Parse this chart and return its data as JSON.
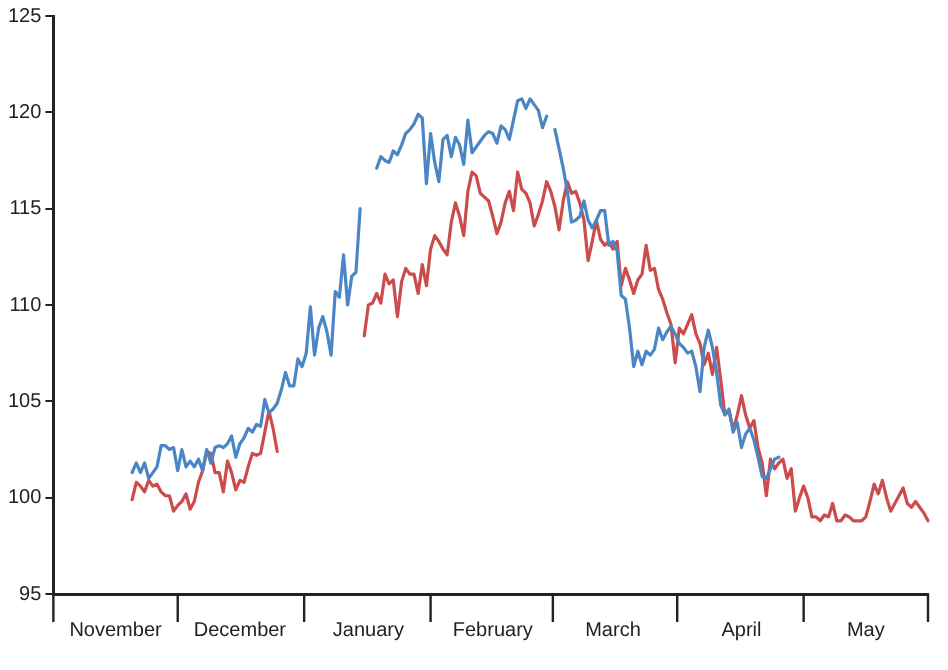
{
  "chart_data": {
    "type": "line",
    "marker": "none",
    "categories": [
      null,
      null,
      null,
      null,
      null,
      null,
      null,
      null,
      null,
      null,
      null,
      null,
      null,
      null,
      null,
      "November",
      null,
      null,
      null,
      null,
      null,
      null,
      null,
      null,
      null,
      null,
      null,
      null,
      null,
      null,
      null,
      null,
      null,
      null,
      null,
      null,
      null,
      null,
      null,
      null,
      null,
      null,
      null,
      null,
      null,
      "December",
      null,
      null,
      null,
      null,
      null,
      null,
      null,
      null,
      null,
      null,
      null,
      null,
      null,
      null,
      null,
      null,
      null,
      null,
      null,
      null,
      null,
      null,
      null,
      null,
      null,
      null,
      null,
      null,
      null,
      null,
      "January",
      null,
      null,
      null,
      null,
      null,
      null,
      null,
      null,
      null,
      null,
      null,
      null,
      null,
      null,
      null,
      null,
      null,
      null,
      null,
      null,
      null,
      null,
      null,
      null,
      null,
      null,
      null,
      null,
      null,
      "February",
      null,
      null,
      null,
      null,
      null,
      null,
      null,
      null,
      null,
      null,
      null,
      null,
      null,
      null,
      null,
      null,
      null,
      null,
      null,
      null,
      null,
      null,
      null,
      null,
      null,
      null,
      null,
      null,
      "March",
      null,
      null,
      null,
      null,
      null,
      null,
      null,
      null,
      null,
      null,
      null,
      null,
      null,
      null,
      null,
      null,
      null,
      null,
      null,
      null,
      null,
      null,
      null,
      null,
      null,
      null,
      null,
      null,
      null,
      null,
      "April",
      null,
      null,
      null,
      null,
      null,
      null,
      null,
      null,
      null,
      null,
      null,
      null,
      null,
      null,
      null,
      null,
      null,
      null,
      null,
      null,
      null,
      null,
      null,
      null,
      null,
      null,
      null,
      null,
      null,
      "May",
      null,
      null,
      null,
      null,
      null,
      null,
      null,
      null,
      null,
      null,
      null,
      null,
      null,
      null,
      null
    ],
    "ylim": [
      95,
      125
    ],
    "yticks": [
      95,
      100,
      105,
      110,
      115,
      120,
      125
    ],
    "series": [
      {
        "color": "#4a86c5",
        "values": [
          null,
          null,
          null,
          null,
          null,
          null,
          null,
          null,
          null,
          null,
          null,
          null,
          null,
          null,
          null,
          null,
          null,
          null,
          null,
          101.3,
          101.8,
          101.3,
          101.8,
          101.0,
          101.3,
          101.6,
          102.7,
          102.7,
          102.5,
          102.6,
          101.4,
          102.5,
          101.6,
          101.9,
          101.6,
          102.0,
          101.4,
          102.5,
          101.8,
          102.6,
          102.7,
          102.6,
          102.8,
          103.2,
          102.1,
          102.8,
          103.1,
          103.6,
          103.4,
          103.8,
          103.7,
          105.1,
          104.4,
          104.6,
          104.9,
          105.6,
          106.5,
          105.8,
          105.8,
          107.2,
          106.8,
          107.5,
          109.9,
          107.4,
          108.8,
          109.4,
          108.6,
          107.4,
          110.7,
          110.4,
          112.6,
          110.0,
          111.5,
          111.7,
          115.0,
          null,
          null,
          null,
          117.1,
          117.7,
          117.5,
          117.4,
          118.0,
          117.8,
          118.3,
          118.9,
          119.1,
          119.4,
          119.9,
          119.7,
          116.3,
          118.9,
          117.4,
          116.4,
          118.6,
          118.8,
          117.7,
          118.7,
          118.3,
          117.3,
          119.6,
          117.9,
          118.2,
          118.5,
          118.8,
          119.0,
          118.9,
          118.4,
          119.3,
          119.1,
          118.6,
          119.6,
          120.6,
          120.7,
          120.2,
          120.7,
          120.4,
          120.1,
          119.2,
          119.8,
          null,
          119.1,
          118.1,
          117.1,
          115.9,
          114.3,
          114.4,
          114.6,
          115.4,
          114.4,
          114.0,
          114.4,
          114.9,
          114.9,
          113.1,
          113.3,
          112.8,
          110.5,
          110.3,
          108.8,
          106.8,
          107.6,
          106.9,
          107.6,
          107.4,
          107.7,
          108.8,
          108.2,
          108.6,
          108.9,
          108.5,
          108.0,
          107.8,
          107.5,
          107.6,
          106.8,
          105.5,
          107.8,
          108.7,
          107.8,
          106.5,
          104.8,
          104.3,
          104.6,
          103.4,
          103.9,
          102.6,
          103.3,
          103.6,
          103.0,
          102.1,
          101.1,
          101.0,
          101.5,
          102.0,
          102.1,
          null,
          null,
          null,
          null,
          null,
          null,
          null,
          null,
          null,
          null,
          null,
          null,
          null,
          null,
          null,
          null,
          null,
          null,
          null,
          null,
          null,
          null,
          null,
          null,
          null,
          null,
          null,
          null,
          null,
          null,
          null,
          null,
          null,
          null,
          null,
          null
        ]
      },
      {
        "color": "#cc4b4b",
        "values": [
          null,
          null,
          null,
          null,
          null,
          null,
          null,
          null,
          null,
          null,
          null,
          null,
          null,
          null,
          null,
          null,
          null,
          null,
          null,
          99.9,
          100.8,
          100.6,
          100.3,
          100.9,
          100.6,
          100.7,
          100.3,
          100.1,
          100.1,
          99.3,
          99.6,
          99.8,
          100.2,
          99.4,
          99.8,
          100.8,
          101.4,
          102.4,
          102.3,
          101.3,
          101.3,
          100.3,
          101.9,
          101.3,
          100.4,
          100.9,
          100.8,
          101.6,
          102.3,
          102.2,
          102.3,
          103.4,
          104.5,
          103.6,
          102.4,
          null,
          null,
          null,
          null,
          null,
          null,
          null,
          null,
          null,
          null,
          null,
          null,
          null,
          null,
          null,
          null,
          null,
          null,
          null,
          null,
          108.4,
          110.0,
          110.1,
          110.6,
          110.1,
          111.6,
          111.1,
          111.3,
          109.4,
          111.2,
          111.9,
          111.6,
          111.6,
          110.6,
          112.1,
          111.0,
          112.9,
          113.6,
          113.3,
          112.9,
          112.6,
          114.3,
          115.3,
          114.6,
          113.6,
          115.9,
          116.9,
          116.7,
          115.8,
          115.6,
          115.4,
          114.6,
          113.7,
          114.3,
          115.3,
          115.9,
          114.9,
          116.9,
          116.0,
          115.8,
          115.3,
          114.1,
          114.7,
          115.4,
          116.4,
          115.9,
          115.1,
          113.9,
          115.4,
          116.4,
          115.8,
          115.9,
          115.3,
          114.4,
          112.3,
          113.3,
          114.4,
          113.4,
          113.1,
          113.3,
          112.9,
          113.3,
          111.0,
          111.9,
          111.3,
          110.6,
          111.3,
          111.6,
          113.1,
          111.8,
          111.9,
          110.8,
          110.3,
          109.6,
          109.0,
          107.0,
          108.8,
          108.5,
          109.0,
          109.5,
          108.5,
          108.0,
          106.9,
          107.5,
          106.4,
          107.8,
          106.1,
          104.3,
          104.5,
          103.5,
          104.3,
          105.3,
          104.3,
          103.6,
          104.0,
          102.6,
          101.8,
          100.1,
          102.0,
          101.5,
          101.8,
          102.0,
          101.0,
          101.5,
          99.3,
          100.0,
          100.6,
          100.0,
          99.0,
          99.0,
          98.8,
          99.1,
          99.0,
          99.7,
          98.8,
          98.8,
          99.1,
          99.0,
          98.8,
          98.8,
          98.8,
          99.0,
          99.8,
          100.7,
          100.2,
          100.9,
          100.0,
          99.3,
          99.7,
          100.1,
          100.5,
          99.7,
          99.5,
          99.8,
          99.5,
          99.2,
          98.8
        ]
      }
    ]
  }
}
